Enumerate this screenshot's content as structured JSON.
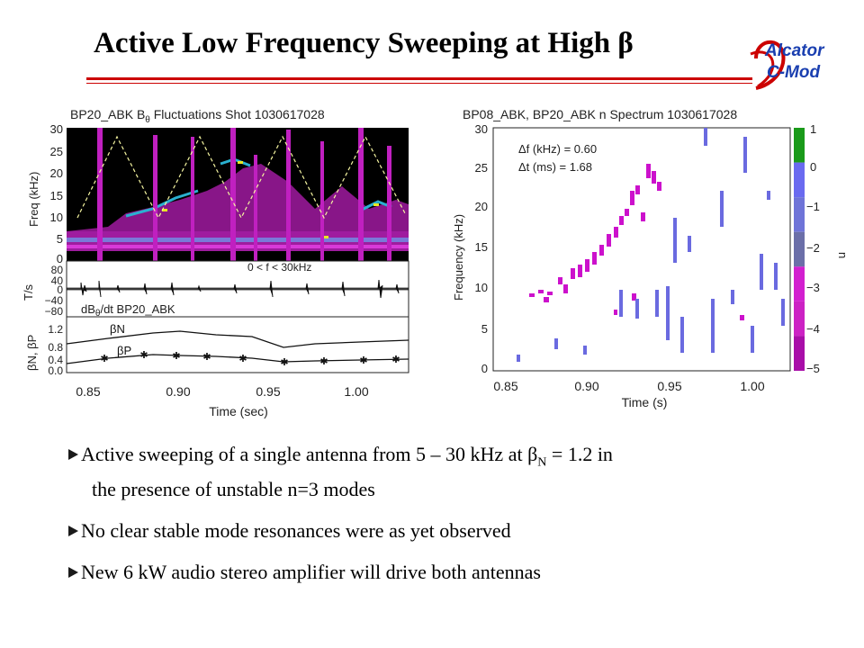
{
  "slide": {
    "title": "Active Low Frequency Sweeping at High β",
    "logo": {
      "line1": "Alcator",
      "line2": "C-Mod"
    }
  },
  "left_plot": {
    "top_title": "BP20_ABK B",
    "top_title_sub": "θ",
    "top_title_rest": " Fluctuations Shot 1030617028",
    "freq_axis_label": "Freq (kHz)",
    "freq_ticks": [
      "30",
      "25",
      "20",
      "15",
      "10",
      "5",
      "0"
    ],
    "mid_axis_label": "T/s",
    "mid_ticks": [
      "80",
      "40",
      "0",
      "−40",
      "−80"
    ],
    "mid_annotation": "0 < f < 30kHz",
    "mid_label": "dB",
    "mid_label_sub": "θ",
    "mid_label_rest": "/dt BP20_ABK",
    "beta_axis_label": "βN, βP",
    "beta_ticks": [
      "1.2",
      "0.8",
      "0.4",
      "0.0"
    ],
    "beta_n_label": "βN",
    "beta_p_label": "βP",
    "time_ticks": [
      "0.85",
      "0.90",
      "0.95",
      "1.00"
    ],
    "time_axis_label": "Time (sec)"
  },
  "right_plot": {
    "title": "BP08_ABK, BP20_ABK n Spectrum 1030617028",
    "y_axis_label": "Frequency (kHz)",
    "y_ticks": [
      "30",
      "25",
      "20",
      "15",
      "10",
      "5",
      "0"
    ],
    "x_ticks": [
      "0.85",
      "0.90",
      "0.95",
      "1.00"
    ],
    "x_axis_label": "Time (s)",
    "annot_df": "Δf (kHz) =  0.60",
    "annot_dt": "Δt (ms) =  1.68",
    "colorbar_label": "n",
    "colorbar_ticks": [
      "1",
      "0",
      "−1",
      "−2",
      "−3",
      "−4",
      "−5"
    ],
    "colorbar_colors": [
      "#1a9a1a",
      "#6a6af0",
      "#6f74d8",
      "#6b6fa8",
      "#d21fcf",
      "#cc22c4",
      "#a80ea8"
    ]
  },
  "bullets": {
    "b1_pre": "Active sweeping of a single antenna from 5 – 30 kHz at β",
    "b1_sub": "N",
    "b1_post": " = 1.2 in",
    "b1_line2": "the presence of unstable n=3 modes",
    "b2": "No clear stable mode resonances were as yet observed",
    "b3": "New 6 kW audio stereo amplifier will drive both antennas"
  }
}
